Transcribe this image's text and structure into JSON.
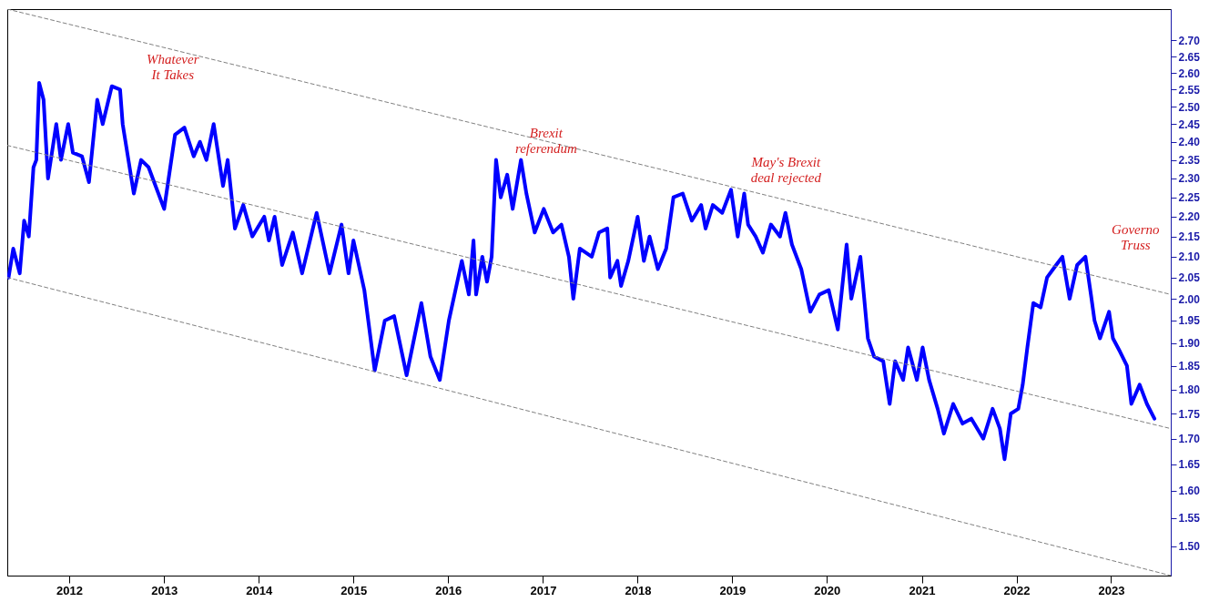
{
  "chart_data": {
    "type": "line",
    "log": true,
    "xlim": [
      "2011-05-07",
      "2023-08-19"
    ],
    "ylim": [
      1.45,
      2.8
    ],
    "xticks": [
      "2012",
      "2013",
      "2014",
      "2015",
      "2016",
      "2017",
      "2018",
      "2019",
      "2020",
      "2021",
      "2022",
      "2023"
    ],
    "yticks": [
      {
        "value": 1.5,
        "label": "1.50"
      },
      {
        "value": 1.55,
        "label": "1.55"
      },
      {
        "value": 1.6,
        "label": "1.60"
      },
      {
        "value": 1.65,
        "label": "1.65"
      },
      {
        "value": 1.7,
        "label": "1.70"
      },
      {
        "value": 1.75,
        "label": "1.75"
      },
      {
        "value": 1.8,
        "label": "1.80"
      },
      {
        "value": 1.85,
        "label": "1.85"
      },
      {
        "value": 1.9,
        "label": "1.90"
      },
      {
        "value": 1.95,
        "label": "1.95"
      },
      {
        "value": 2.0,
        "label": "2.00"
      },
      {
        "value": 2.05,
        "label": "2.05"
      },
      {
        "value": 2.1,
        "label": "2.10"
      },
      {
        "value": 2.15,
        "label": "2.15"
      },
      {
        "value": 2.2,
        "label": "2.20"
      },
      {
        "value": 2.25,
        "label": "2.25"
      },
      {
        "value": 2.3,
        "label": "2.30"
      },
      {
        "value": 2.35,
        "label": "2.35"
      },
      {
        "value": 2.4,
        "label": "2.40"
      },
      {
        "value": 2.45,
        "label": "2.45"
      },
      {
        "value": 2.5,
        "label": "2.50"
      },
      {
        "value": 2.55,
        "label": "2.55"
      },
      {
        "value": 2.6,
        "label": "2.60"
      },
      {
        "value": 2.65,
        "label": "2.65"
      },
      {
        "value": 2.7,
        "label": "2.70"
      }
    ],
    "series": [
      {
        "color": "#0000ff",
        "x": [
          "2011-05-12",
          "2011-05-30",
          "2011-06-24",
          "2011-07-11",
          "2011-07-29",
          "2011-08-16",
          "2011-08-27",
          "2011-09-07",
          "2011-09-24",
          "2011-10-11",
          "2011-11-12",
          "2011-11-30",
          "2011-12-28",
          "2012-01-15",
          "2012-02-19",
          "2012-03-17",
          "2012-04-18",
          "2012-05-09",
          "2012-06-13",
          "2012-07-15",
          "2012-07-25",
          "2012-09-06",
          "2012-10-04",
          "2012-11-02",
          "2013-01-01",
          "2013-02-12",
          "2013-03-20",
          "2013-04-25",
          "2013-05-19",
          "2013-06-13",
          "2013-07-11",
          "2013-08-16",
          "2013-09-03",
          "2013-10-01",
          "2013-11-02",
          "2013-12-07",
          "2014-01-22",
          "2014-02-09",
          "2014-03-03",
          "2014-04-01",
          "2014-05-12",
          "2014-06-17",
          "2014-08-12",
          "2014-10-01",
          "2014-11-16",
          "2014-12-13",
          "2015-01-01",
          "2015-02-12",
          "2015-03-24",
          "2015-05-02",
          "2015-06-07",
          "2015-07-25",
          "2015-09-20",
          "2015-10-25",
          "2015-11-30",
          "2016-01-04",
          "2016-02-23",
          "2016-03-21",
          "2016-04-08",
          "2016-04-18",
          "2016-05-12",
          "2016-05-30",
          "2016-06-17",
          "2016-07-04",
          "2016-07-22",
          "2016-08-16",
          "2016-09-06",
          "2016-10-08",
          "2016-10-29",
          "2016-11-30",
          "2017-01-04",
          "2017-02-09",
          "2017-03-13",
          "2017-04-11",
          "2017-04-28",
          "2017-05-23",
          "2017-07-08",
          "2017-08-05",
          "2017-09-06",
          "2017-09-17",
          "2017-10-15",
          "2017-10-29",
          "2017-11-26",
          "2018-01-01",
          "2018-01-25",
          "2018-02-16",
          "2018-03-20",
          "2018-04-21",
          "2018-05-19",
          "2018-06-24",
          "2018-07-29",
          "2018-09-03",
          "2018-09-20",
          "2018-10-18",
          "2018-11-23",
          "2018-12-27",
          "2019-01-22",
          "2019-02-16",
          "2019-03-03",
          "2019-04-01",
          "2019-04-29",
          "2019-05-30",
          "2019-07-04",
          "2019-07-25",
          "2019-08-19",
          "2019-09-24",
          "2019-10-18",
          "2019-10-29",
          "2019-12-03",
          "2020-01-08",
          "2020-02-12",
          "2020-03-17",
          "2020-04-04",
          "2020-05-09",
          "2020-06-07",
          "2020-07-01",
          "2020-08-05",
          "2020-08-30",
          "2020-09-20",
          "2020-10-21",
          "2020-11-09",
          "2020-12-13",
          "2021-01-04",
          "2021-01-29",
          "2021-03-03",
          "2021-03-27",
          "2021-05-02",
          "2021-06-07",
          "2021-07-11",
          "2021-08-26",
          "2021-10-01",
          "2021-10-29",
          "2021-11-16",
          "2021-12-10",
          "2022-01-08",
          "2022-01-25",
          "2022-02-12",
          "2022-03-07",
          "2022-04-04",
          "2022-04-29",
          "2022-06-03",
          "2022-06-27",
          "2022-07-25",
          "2022-08-23",
          "2022-09-24",
          "2022-10-15",
          "2022-10-29",
          "2022-11-19",
          "2022-12-24",
          "2023-01-08",
          "2023-02-05",
          "2023-03-03",
          "2023-03-20",
          "2023-04-21",
          "2023-05-19",
          "2023-06-17"
        ],
        "values": [
          2.05,
          2.12,
          2.06,
          2.19,
          2.15,
          2.33,
          2.35,
          2.57,
          2.52,
          2.3,
          2.45,
          2.35,
          2.45,
          2.37,
          2.36,
          2.29,
          2.52,
          2.45,
          2.56,
          2.55,
          2.45,
          2.26,
          2.35,
          2.33,
          2.22,
          2.42,
          2.44,
          2.36,
          2.4,
          2.35,
          2.45,
          2.28,
          2.35,
          2.17,
          2.23,
          2.15,
          2.2,
          2.14,
          2.2,
          2.08,
          2.16,
          2.06,
          2.21,
          2.06,
          2.18,
          2.06,
          2.14,
          2.02,
          1.84,
          1.95,
          1.96,
          1.83,
          1.99,
          1.87,
          1.82,
          1.95,
          2.09,
          2.01,
          2.14,
          2.01,
          2.1,
          2.04,
          2.1,
          2.35,
          2.25,
          2.31,
          2.22,
          2.35,
          2.26,
          2.16,
          2.22,
          2.16,
          2.18,
          2.1,
          2.0,
          2.12,
          2.1,
          2.16,
          2.17,
          2.05,
          2.09,
          2.03,
          2.09,
          2.2,
          2.09,
          2.15,
          2.07,
          2.12,
          2.25,
          2.26,
          2.19,
          2.23,
          2.17,
          2.23,
          2.21,
          2.27,
          2.15,
          2.26,
          2.18,
          2.15,
          2.11,
          2.18,
          2.15,
          2.21,
          2.13,
          2.07,
          2.0,
          1.97,
          2.01,
          2.02,
          1.93,
          2.13,
          2.0,
          2.1,
          1.91,
          1.87,
          1.86,
          1.77,
          1.86,
          1.82,
          1.89,
          1.82,
          1.89,
          1.82,
          1.76,
          1.71,
          1.77,
          1.73,
          1.74,
          1.7,
          1.76,
          1.72,
          1.66,
          1.75,
          1.76,
          1.81,
          1.89,
          1.99,
          1.98,
          2.05,
          2.08,
          2.1,
          2.0,
          2.08,
          2.1,
          2.01,
          1.95,
          1.91,
          1.97,
          1.91,
          1.88,
          1.85,
          1.77,
          1.81,
          1.77,
          1.74
        ]
      },
      {
        "color": "#808080",
        "line_style": "dashed",
        "x": [
          "2011-05-07",
          "2023-08-19"
        ],
        "values": [
          2.8,
          2.01
        ]
      },
      {
        "color": "#808080",
        "line_style": "dashed",
        "x": [
          "2011-05-07",
          "2023-08-19"
        ],
        "values": [
          2.39,
          1.72
        ]
      },
      {
        "color": "#808080",
        "line_style": "dashed",
        "x": [
          "2011-05-07",
          "2023-08-19"
        ],
        "values": [
          2.05,
          1.45
        ]
      }
    ],
    "annotations": [
      {
        "text": "Whatever\nIt Takes",
        "x": "2012-07-25",
        "y": 2.56
      },
      {
        "text": "Brexit\nreferendum",
        "x": "2016-07-04",
        "y": 2.35
      },
      {
        "text": "May's Brexit\ndeal rejected",
        "x": "2019-01-15",
        "y": 2.27
      },
      {
        "text": "Governo\nTruss",
        "x": "2022-09-24",
        "y": 2.1
      }
    ]
  }
}
